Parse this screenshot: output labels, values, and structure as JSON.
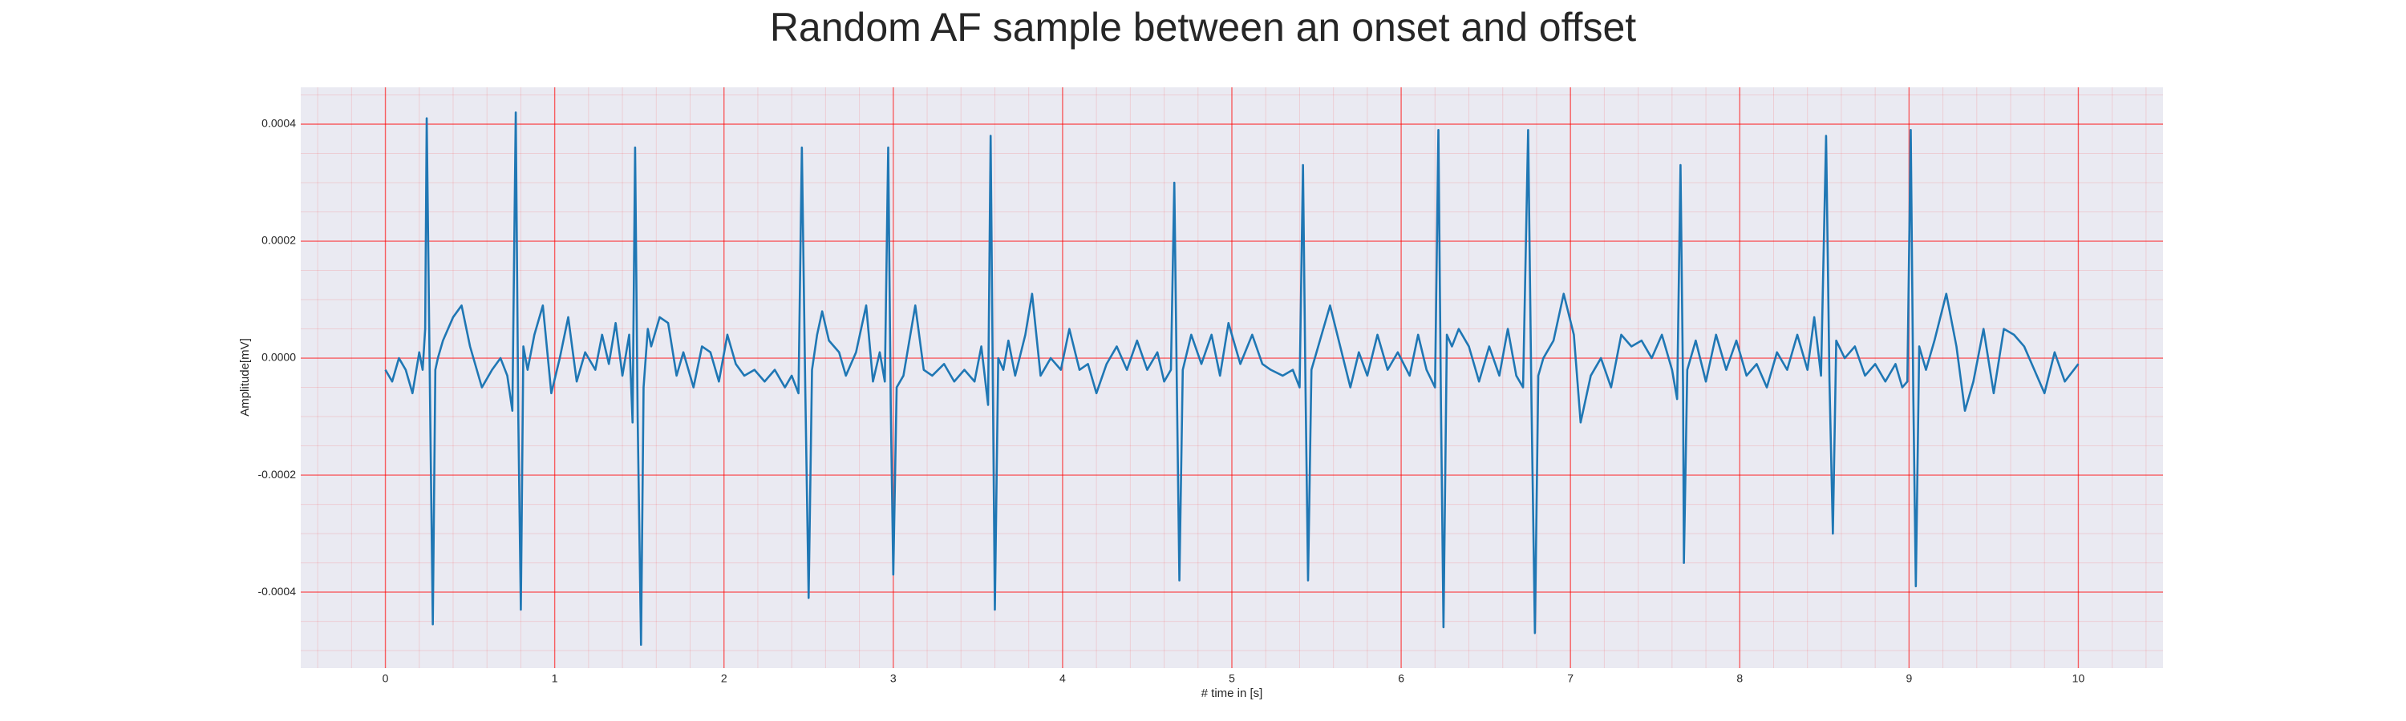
{
  "chart_data": {
    "type": "line",
    "title": "Random AF sample between an onset and offset",
    "xlabel": "# time in [s]",
    "ylabel": "Amplitude[mV]",
    "color": "#1f77b4",
    "grid": true,
    "grid_color": "#ff0000",
    "xlim": [
      -0.5,
      10.5
    ],
    "ylim": [
      -0.00053,
      0.000463
    ],
    "xticks": [
      0,
      1,
      2,
      3,
      4,
      5,
      6,
      7,
      8,
      9,
      10
    ],
    "yticks": [
      -0.0004,
      -0.0002,
      {
        "value": 0,
        "label": "0.0000"
      },
      0.0002,
      0.0004
    ],
    "x": [
      0,
      0.04,
      0.08,
      0.12,
      0.16,
      0.2,
      0.22,
      0.235,
      0.244,
      0.265,
      0.28,
      0.295,
      0.31,
      0.34,
      0.4,
      0.45,
      0.5,
      0.57,
      0.63,
      0.68,
      0.72,
      0.75,
      0.77,
      0.785,
      0.8,
      0.815,
      0.84,
      0.88,
      0.93,
      0.98,
      1.03,
      1.08,
      1.13,
      1.18,
      1.24,
      1.28,
      1.32,
      1.36,
      1.4,
      1.44,
      1.46,
      1.475,
      1.49,
      1.51,
      1.525,
      1.55,
      1.57,
      1.62,
      1.67,
      1.72,
      1.76,
      1.82,
      1.87,
      1.92,
      1.97,
      2.02,
      2.07,
      2.12,
      2.18,
      2.24,
      2.3,
      2.36,
      2.4,
      2.44,
      2.46,
      2.48,
      2.5,
      2.52,
      2.55,
      2.58,
      2.62,
      2.68,
      2.72,
      2.78,
      2.84,
      2.88,
      2.92,
      2.95,
      2.97,
      2.985,
      3.0,
      3.02,
      3.06,
      3.13,
      3.18,
      3.23,
      3.3,
      3.36,
      3.42,
      3.48,
      3.52,
      3.56,
      3.575,
      3.59,
      3.6,
      3.62,
      3.65,
      3.68,
      3.72,
      3.78,
      3.82,
      3.87,
      3.93,
      3.99,
      4.04,
      4.1,
      4.15,
      4.2,
      4.26,
      4.32,
      4.38,
      4.44,
      4.5,
      4.56,
      4.6,
      4.64,
      4.66,
      4.675,
      4.69,
      4.71,
      4.76,
      4.82,
      4.88,
      4.93,
      4.98,
      5.05,
      5.12,
      5.18,
      5.23,
      5.3,
      5.36,
      5.4,
      5.42,
      5.435,
      5.45,
      5.47,
      5.52,
      5.58,
      5.64,
      5.7,
      5.75,
      5.8,
      5.86,
      5.92,
      5.98,
      6.05,
      6.1,
      6.15,
      6.2,
      6.22,
      6.235,
      6.25,
      6.27,
      6.3,
      6.34,
      6.4,
      6.46,
      6.52,
      6.58,
      6.63,
      6.68,
      6.72,
      6.75,
      6.77,
      6.79,
      6.81,
      6.84,
      6.9,
      6.96,
      7.02,
      7.06,
      7.12,
      7.18,
      7.24,
      7.3,
      7.36,
      7.42,
      7.48,
      7.54,
      7.6,
      7.63,
      7.65,
      7.665,
      7.67,
      7.69,
      7.74,
      7.8,
      7.86,
      7.92,
      7.98,
      8.04,
      8.1,
      8.16,
      8.22,
      8.28,
      8.34,
      8.4,
      8.44,
      8.48,
      8.51,
      8.53,
      8.55,
      8.57,
      8.62,
      8.68,
      8.74,
      8.8,
      8.86,
      8.92,
      8.96,
      8.99,
      9.01,
      9.025,
      9.04,
      9.06,
      9.1,
      9.15,
      9.22,
      9.28,
      9.33,
      9.38,
      9.44,
      9.5,
      9.56,
      9.62,
      9.68,
      9.74,
      9.8,
      9.86,
      9.92,
      10.0
    ],
    "values": [
      -2e-05,
      -4e-05,
      0.0,
      -2e-05,
      -6e-05,
      1e-05,
      -2e-05,
      5e-05,
      0.00041,
      -0.0001,
      -0.000455,
      -2e-05,
      0.0,
      3e-05,
      7e-05,
      9e-05,
      2e-05,
      -5e-05,
      -2e-05,
      0.0,
      -3e-05,
      -9e-05,
      0.00042,
      -0.0001,
      -0.00043,
      2e-05,
      -2e-05,
      4e-05,
      9e-05,
      -6e-05,
      0.0,
      7e-05,
      -4e-05,
      1e-05,
      -2e-05,
      4e-05,
      -1e-05,
      6e-05,
      -3e-05,
      4e-05,
      -0.00011,
      0.00036,
      -0.0001,
      -0.00049,
      -5e-05,
      5e-05,
      2e-05,
      7e-05,
      6e-05,
      -3e-05,
      1e-05,
      -5e-05,
      2e-05,
      1e-05,
      -4e-05,
      4e-05,
      -1e-05,
      -3e-05,
      -2e-05,
      -4e-05,
      -2e-05,
      -5e-05,
      -3e-05,
      -6e-05,
      0.00036,
      -5e-05,
      -0.00041,
      -2e-05,
      4e-05,
      8e-05,
      3e-05,
      1e-05,
      -3e-05,
      1e-05,
      9e-05,
      -4e-05,
      1e-05,
      -4e-05,
      0.00036,
      -8e-05,
      -0.00037,
      -5e-05,
      -3e-05,
      9e-05,
      -2e-05,
      -3e-05,
      -1e-05,
      -4e-05,
      -2e-05,
      -4e-05,
      2e-05,
      -8e-05,
      0.00038,
      -0.0001,
      -0.00043,
      0.0,
      -2e-05,
      3e-05,
      -3e-05,
      4e-05,
      0.00011,
      -3e-05,
      0.0,
      -2e-05,
      5e-05,
      -2e-05,
      -1e-05,
      -6e-05,
      -1e-05,
      2e-05,
      -2e-05,
      3e-05,
      -2e-05,
      1e-05,
      -4e-05,
      -2e-05,
      0.0003,
      -5e-05,
      -0.00038,
      -2e-05,
      4e-05,
      -1e-05,
      4e-05,
      -3e-05,
      6e-05,
      -1e-05,
      4e-05,
      -1e-05,
      -2e-05,
      -3e-05,
      -2e-05,
      -5e-05,
      0.00033,
      -5e-05,
      -0.00038,
      -2e-05,
      3e-05,
      9e-05,
      2e-05,
      -5e-05,
      1e-05,
      -3e-05,
      4e-05,
      -2e-05,
      1e-05,
      -3e-05,
      4e-05,
      -2e-05,
      -5e-05,
      0.00039,
      -8e-05,
      -0.00046,
      4e-05,
      2e-05,
      5e-05,
      2e-05,
      -4e-05,
      2e-05,
      -3e-05,
      5e-05,
      -3e-05,
      -5e-05,
      0.00039,
      -8e-05,
      -0.00047,
      -3e-05,
      0.0,
      3e-05,
      0.00011,
      4e-05,
      -0.00011,
      -3e-05,
      0.0,
      -5e-05,
      4e-05,
      2e-05,
      3e-05,
      0.0,
      4e-05,
      -2e-05,
      -7e-05,
      0.00033,
      -5e-05,
      -0.00035,
      -2e-05,
      3e-05,
      -4e-05,
      4e-05,
      -2e-05,
      3e-05,
      -3e-05,
      -1e-05,
      -5e-05,
      1e-05,
      -2e-05,
      4e-05,
      -2e-05,
      7e-05,
      -3e-05,
      0.00038,
      -4e-05,
      -0.0003,
      3e-05,
      0.0,
      2e-05,
      -3e-05,
      -1e-05,
      -4e-05,
      -1e-05,
      -5e-05,
      -4e-05,
      0.00039,
      -6e-05,
      -0.00039,
      2e-05,
      -2e-05,
      3e-05,
      0.00011,
      2e-05,
      -9e-05,
      -4e-05,
      5e-05,
      -6e-05,
      5e-05,
      4e-05,
      2e-05,
      -2e-05,
      -6e-05,
      1e-05,
      -4e-05,
      -1e-05
    ]
  }
}
